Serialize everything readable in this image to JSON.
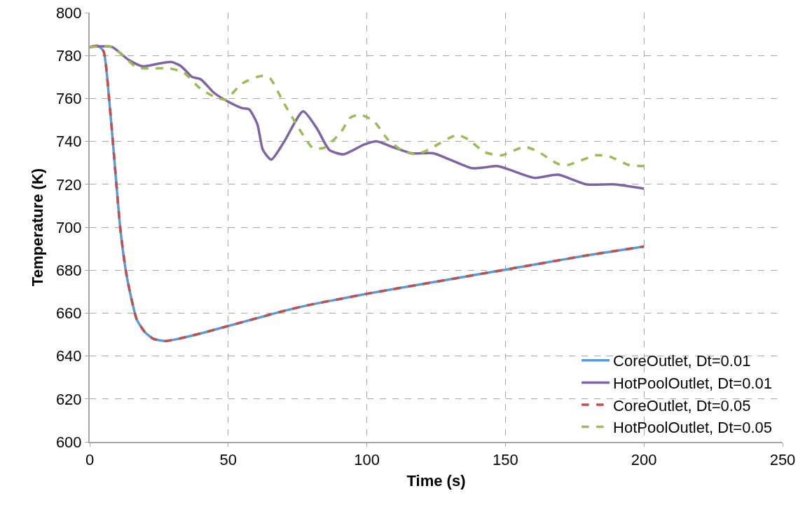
{
  "chart_data": {
    "type": "line",
    "xlabel": "Time (s)",
    "ylabel": "Temperature (K)",
    "xlim": [
      0,
      250
    ],
    "xticks": [
      0,
      50,
      100,
      150,
      200,
      250
    ],
    "ylim": [
      600,
      800
    ],
    "yticks": [
      600,
      620,
      640,
      660,
      680,
      700,
      720,
      740,
      760,
      780,
      800
    ],
    "grid": true,
    "legend": "bottom right",
    "marker": "none",
    "series": [
      {
        "name": "CoreOutlet, Dt=0.01",
        "color": "#5b9bd5",
        "line_style": "solid",
        "x": [
          0,
          3,
          5,
          7,
          9,
          11,
          13,
          15,
          17,
          20,
          23,
          27,
          30,
          40,
          50,
          60,
          70,
          80,
          90,
          100,
          120,
          140,
          160,
          180,
          200
        ],
        "values": [
          784,
          784.5,
          782,
          760,
          730,
          700,
          680,
          667,
          657,
          651,
          648,
          647,
          647.5,
          650.5,
          654,
          657.5,
          661,
          664,
          666.5,
          669,
          673.5,
          678,
          682.5,
          687,
          691
        ]
      },
      {
        "name": "HotPoolOutlet, Dt=0.01",
        "color": "#8064a2",
        "line_style": "solid",
        "x": [
          0,
          8,
          14,
          19,
          24,
          29.5,
          33,
          37,
          40,
          45,
          50,
          55,
          57.5,
          60.5,
          62.5,
          65.5,
          70,
          77,
          82,
          86.5,
          91.5,
          99,
          103.5,
          109,
          116,
          124,
          130,
          138,
          147,
          150,
          160.5,
          169,
          179,
          189,
          200
        ],
        "values": [
          784,
          784,
          778,
          775,
          776,
          777,
          775,
          770,
          769,
          762.5,
          758.5,
          755.5,
          755,
          748,
          736,
          731.5,
          739.5,
          754,
          746,
          736,
          734,
          738.5,
          740,
          737.5,
          734.5,
          734.5,
          731.5,
          727.5,
          728.5,
          727.5,
          723,
          724.5,
          720,
          720,
          718
        ]
      },
      {
        "name": "CoreOutlet, Dt=0.05",
        "color": "#c0504d",
        "line_style": "dashed",
        "x": [
          0,
          3,
          5,
          7,
          9,
          11,
          13,
          15,
          17,
          20,
          23,
          27,
          30,
          40,
          50,
          60,
          70,
          80,
          90,
          100,
          120,
          140,
          160,
          180,
          200
        ],
        "values": [
          784,
          784.5,
          782,
          760,
          730,
          700,
          680,
          667,
          657,
          651,
          648,
          647,
          647.5,
          650.5,
          654,
          657.5,
          661,
          664,
          666.5,
          669,
          673.5,
          678,
          682.5,
          687,
          691
        ]
      },
      {
        "name": "HotPoolOutlet, Dt=0.05",
        "color": "#9bbb59",
        "line_style": "dashed",
        "x": [
          0,
          8,
          17,
          23,
          29,
          34,
          40,
          45.5,
          49,
          55,
          62,
          65,
          70,
          75.5,
          80.5,
          84.5,
          90.5,
          94,
          97.5,
          102.5,
          107.5,
          113,
          118,
          122,
          132.5,
          136.5,
          142.5,
          148.5,
          157,
          162,
          169,
          172.5,
          182.5,
          187.5,
          194.5,
          200
        ],
        "values": [
          784,
          784,
          774.5,
          774,
          774,
          772,
          764.5,
          760.5,
          759.5,
          767,
          770.5,
          769.5,
          758,
          746,
          737,
          737,
          744,
          751,
          752.5,
          749.5,
          741,
          735.5,
          734,
          736,
          743,
          741,
          735,
          733.5,
          737.5,
          735,
          729.5,
          729,
          733.5,
          733,
          729,
          728.5
        ]
      }
    ]
  }
}
